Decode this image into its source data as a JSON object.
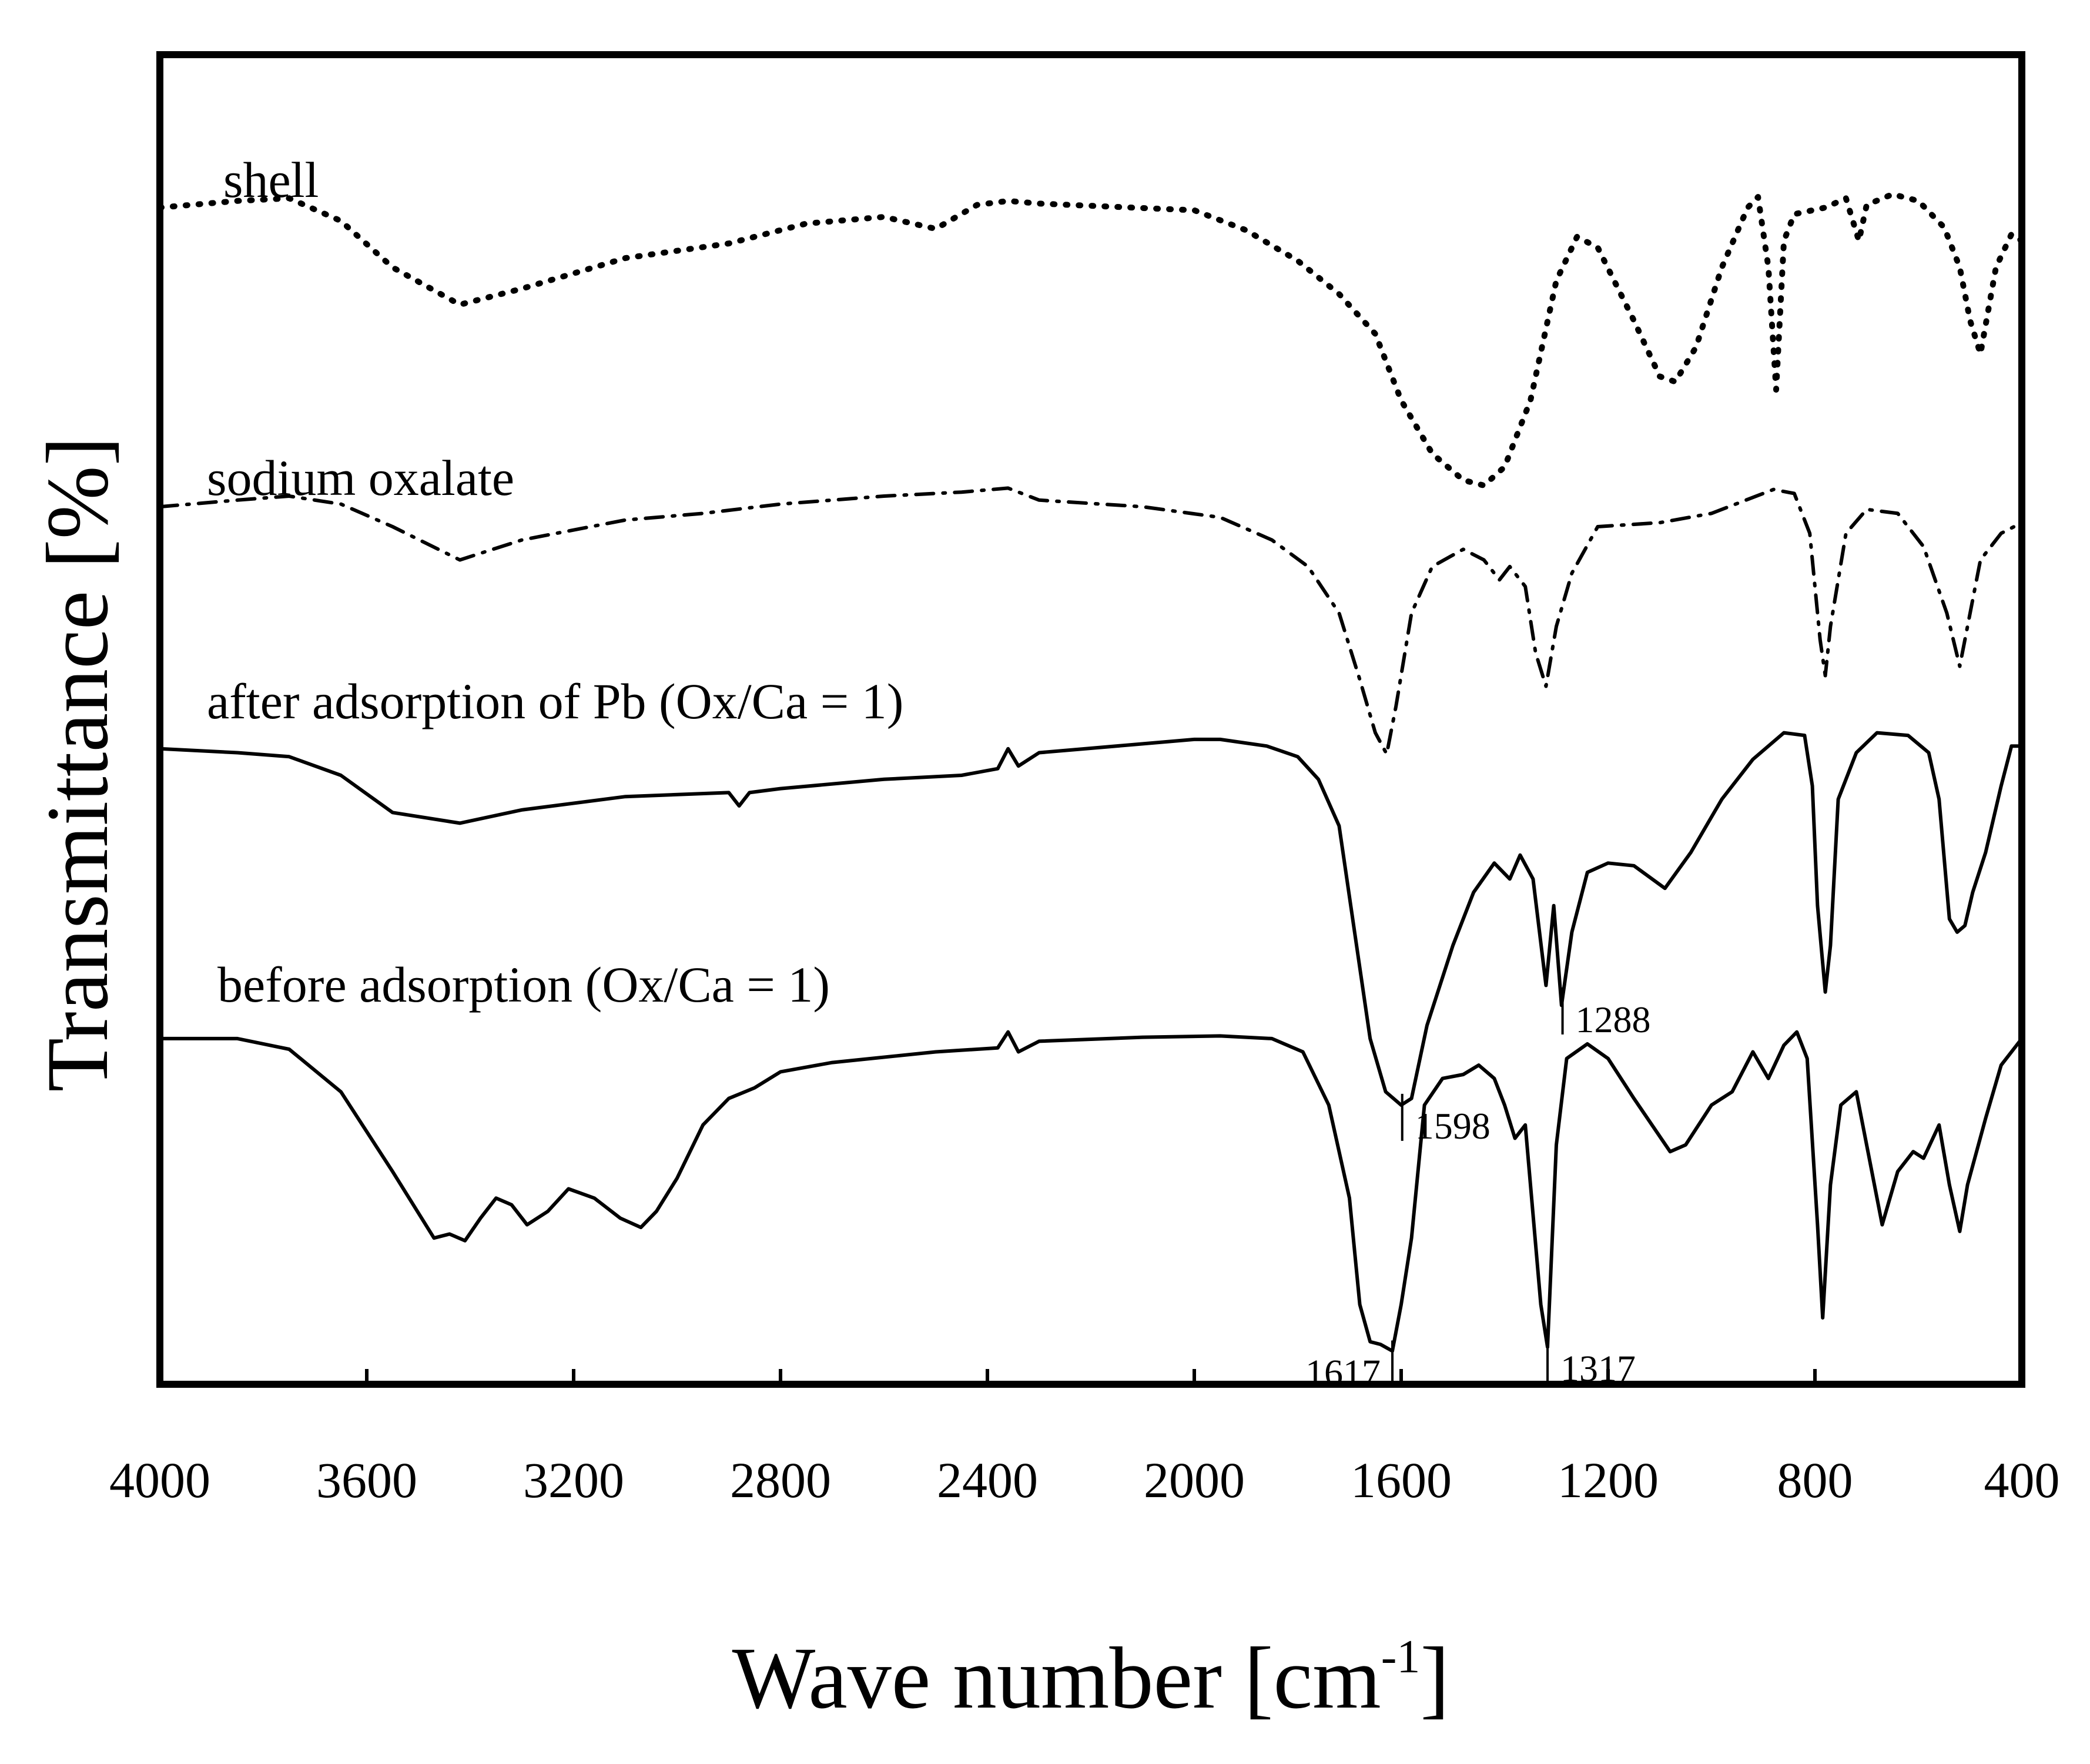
{
  "chart_data": {
    "type": "line",
    "title": "",
    "xlabel": "Wave number [cm",
    "xlabel_sup": "-1",
    "xlabel_end": "]",
    "ylabel": "Transmittance [%]",
    "xlim": [
      4000,
      400
    ],
    "ylim": [
      0,
      100
    ],
    "x_ticks": [
      4000,
      3600,
      3200,
      2800,
      2400,
      2000,
      1600,
      1200,
      800,
      400
    ],
    "x_tick_labels": [
      "4000",
      "3600",
      "3200",
      "2800",
      "2400",
      "2000",
      "1600",
      "1200",
      "800",
      "400"
    ],
    "grid": false,
    "series": [
      {
        "name": "shell",
        "style": "dotted",
        "points": [
          [
            4000,
            88.5
          ],
          [
            3850,
            89
          ],
          [
            3750,
            89.2
          ],
          [
            3650,
            87.5
          ],
          [
            3550,
            84
          ],
          [
            3420,
            81.2
          ],
          [
            3300,
            82.4
          ],
          [
            3100,
            84.7
          ],
          [
            2900,
            85.8
          ],
          [
            2750,
            87.3
          ],
          [
            2600,
            87.8
          ],
          [
            2500,
            86.9
          ],
          [
            2420,
            88.7
          ],
          [
            2360,
            89
          ],
          [
            2300,
            88.8
          ],
          [
            2000,
            88.3
          ],
          [
            1900,
            86.8
          ],
          [
            1800,
            84.5
          ],
          [
            1720,
            82
          ],
          [
            1650,
            79
          ],
          [
            1600,
            74
          ],
          [
            1540,
            70
          ],
          [
            1480,
            68
          ],
          [
            1440,
            67.6
          ],
          [
            1400,
            69
          ],
          [
            1350,
            74
          ],
          [
            1300,
            83
          ],
          [
            1260,
            86.3
          ],
          [
            1220,
            85.5
          ],
          [
            1150,
            80
          ],
          [
            1100,
            75.8
          ],
          [
            1070,
            75.4
          ],
          [
            1030,
            78
          ],
          [
            980,
            84
          ],
          [
            930,
            88.5
          ],
          [
            910,
            89.3
          ],
          [
            890,
            84
          ],
          [
            875,
            74.8
          ],
          [
            860,
            86
          ],
          [
            840,
            88
          ],
          [
            780,
            88.5
          ],
          [
            740,
            89.2
          ],
          [
            715,
            86
          ],
          [
            700,
            88.7
          ],
          [
            650,
            89.5
          ],
          [
            600,
            89
          ],
          [
            550,
            87
          ],
          [
            520,
            84
          ],
          [
            500,
            80
          ],
          [
            480,
            77.5
          ],
          [
            450,
            84
          ],
          [
            420,
            86.5
          ],
          [
            400,
            86
          ]
        ]
      },
      {
        "name": "sodium oxalate",
        "style": "dashdot",
        "points": [
          [
            4000,
            66
          ],
          [
            3850,
            66.5
          ],
          [
            3750,
            66.8
          ],
          [
            3650,
            66.2
          ],
          [
            3550,
            64.5
          ],
          [
            3420,
            62
          ],
          [
            3300,
            63.5
          ],
          [
            3100,
            65
          ],
          [
            2950,
            65.5
          ],
          [
            2800,
            66.2
          ],
          [
            2600,
            66.8
          ],
          [
            2450,
            67.1
          ],
          [
            2360,
            67.4
          ],
          [
            2300,
            66.5
          ],
          [
            2100,
            66
          ],
          [
            1950,
            65.2
          ],
          [
            1850,
            63.5
          ],
          [
            1780,
            61.5
          ],
          [
            1720,
            58
          ],
          [
            1680,
            53
          ],
          [
            1650,
            49
          ],
          [
            1628,
            47.4
          ],
          [
            1610,
            51
          ],
          [
            1580,
            58
          ],
          [
            1540,
            61.5
          ],
          [
            1480,
            62.8
          ],
          [
            1440,
            62
          ],
          [
            1410,
            60.5
          ],
          [
            1390,
            61.5
          ],
          [
            1360,
            60
          ],
          [
            1340,
            55
          ],
          [
            1320,
            52.5
          ],
          [
            1300,
            57
          ],
          [
            1270,
            61
          ],
          [
            1220,
            64.5
          ],
          [
            1100,
            64.8
          ],
          [
            1000,
            65.5
          ],
          [
            880,
            67.3
          ],
          [
            840,
            67
          ],
          [
            810,
            64
          ],
          [
            790,
            56
          ],
          [
            780,
            53.3
          ],
          [
            770,
            57
          ],
          [
            740,
            64
          ],
          [
            700,
            65.8
          ],
          [
            640,
            65.5
          ],
          [
            590,
            63
          ],
          [
            545,
            58
          ],
          [
            520,
            54
          ],
          [
            505,
            57
          ],
          [
            480,
            62
          ],
          [
            440,
            64
          ],
          [
            400,
            64.8
          ]
        ]
      },
      {
        "name": "after adsorption of Pb (Ox/Ca = 1)",
        "style": "solid",
        "points": [
          [
            4000,
            47.8
          ],
          [
            3850,
            47.5
          ],
          [
            3750,
            47.2
          ],
          [
            3650,
            45.8
          ],
          [
            3550,
            43
          ],
          [
            3420,
            42.2
          ],
          [
            3300,
            43.2
          ],
          [
            3100,
            44.2
          ],
          [
            2900,
            44.5
          ],
          [
            2880,
            43.5
          ],
          [
            2860,
            44.5
          ],
          [
            2800,
            44.8
          ],
          [
            2600,
            45.5
          ],
          [
            2450,
            45.8
          ],
          [
            2380,
            46.3
          ],
          [
            2360,
            47.8
          ],
          [
            2340,
            46.5
          ],
          [
            2300,
            47.5
          ],
          [
            2000,
            48.5
          ],
          [
            1950,
            48.5
          ],
          [
            1860,
            48
          ],
          [
            1800,
            47.2
          ],
          [
            1760,
            45.5
          ],
          [
            1720,
            42
          ],
          [
            1690,
            34
          ],
          [
            1660,
            26
          ],
          [
            1630,
            22
          ],
          [
            1600,
            21
          ],
          [
            1580,
            21.5
          ],
          [
            1550,
            27
          ],
          [
            1500,
            33
          ],
          [
            1460,
            37
          ],
          [
            1420,
            39.2
          ],
          [
            1390,
            38
          ],
          [
            1370,
            39.8
          ],
          [
            1345,
            38
          ],
          [
            1320,
            30
          ],
          [
            1305,
            36
          ],
          [
            1290,
            28.5
          ],
          [
            1270,
            34
          ],
          [
            1240,
            38.5
          ],
          [
            1200,
            39.2
          ],
          [
            1150,
            39
          ],
          [
            1090,
            37.3
          ],
          [
            1040,
            40
          ],
          [
            980,
            44
          ],
          [
            920,
            47
          ],
          [
            860,
            49
          ],
          [
            820,
            48.8
          ],
          [
            805,
            45
          ],
          [
            795,
            36
          ],
          [
            780,
            29.5
          ],
          [
            770,
            33
          ],
          [
            755,
            44
          ],
          [
            720,
            47.5
          ],
          [
            680,
            49
          ],
          [
            620,
            48.8
          ],
          [
            580,
            47.5
          ],
          [
            560,
            44
          ],
          [
            540,
            35
          ],
          [
            525,
            34
          ],
          [
            510,
            34.5
          ],
          [
            495,
            37
          ],
          [
            470,
            40
          ],
          [
            440,
            45
          ],
          [
            420,
            48
          ],
          [
            400,
            48
          ]
        ]
      },
      {
        "name": "before adsorption (Ox/Ca = 1)",
        "style": "solid",
        "points": [
          [
            4000,
            26
          ],
          [
            3850,
            26
          ],
          [
            3750,
            25.2
          ],
          [
            3650,
            22
          ],
          [
            3550,
            16
          ],
          [
            3470,
            11
          ],
          [
            3440,
            11.3
          ],
          [
            3410,
            10.8
          ],
          [
            3380,
            12.5
          ],
          [
            3350,
            14
          ],
          [
            3320,
            13.5
          ],
          [
            3290,
            12
          ],
          [
            3250,
            13
          ],
          [
            3210,
            14.7
          ],
          [
            3160,
            14
          ],
          [
            3110,
            12.5
          ],
          [
            3070,
            11.8
          ],
          [
            3040,
            13
          ],
          [
            3000,
            15.5
          ],
          [
            2950,
            19.5
          ],
          [
            2900,
            21.5
          ],
          [
            2850,
            22.3
          ],
          [
            2800,
            23.5
          ],
          [
            2700,
            24.2
          ],
          [
            2500,
            25
          ],
          [
            2380,
            25.3
          ],
          [
            2360,
            26.5
          ],
          [
            2340,
            25
          ],
          [
            2300,
            25.8
          ],
          [
            2100,
            26.1
          ],
          [
            1950,
            26.2
          ],
          [
            1850,
            26
          ],
          [
            1790,
            25
          ],
          [
            1740,
            21
          ],
          [
            1700,
            14
          ],
          [
            1680,
            6
          ],
          [
            1660,
            3.2
          ],
          [
            1640,
            3
          ],
          [
            1617,
            2.5
          ],
          [
            1600,
            6
          ],
          [
            1580,
            11
          ],
          [
            1555,
            21
          ],
          [
            1520,
            23
          ],
          [
            1480,
            23.3
          ],
          [
            1450,
            24
          ],
          [
            1420,
            23
          ],
          [
            1400,
            21
          ],
          [
            1380,
            18.5
          ],
          [
            1360,
            19.5
          ],
          [
            1330,
            6
          ],
          [
            1317,
            2.8
          ],
          [
            1300,
            18
          ],
          [
            1280,
            24.5
          ],
          [
            1240,
            25.6
          ],
          [
            1200,
            24.5
          ],
          [
            1150,
            21.5
          ],
          [
            1080,
            17.5
          ],
          [
            1050,
            18
          ],
          [
            1000,
            21
          ],
          [
            960,
            22
          ],
          [
            920,
            25
          ],
          [
            890,
            23
          ],
          [
            860,
            25.5
          ],
          [
            835,
            26.5
          ],
          [
            815,
            24.5
          ],
          [
            795,
            12
          ],
          [
            785,
            5
          ],
          [
            770,
            15
          ],
          [
            750,
            21
          ],
          [
            720,
            22
          ],
          [
            690,
            16
          ],
          [
            670,
            12
          ],
          [
            640,
            16
          ],
          [
            610,
            17.5
          ],
          [
            590,
            17
          ],
          [
            560,
            19.5
          ],
          [
            540,
            15
          ],
          [
            520,
            11.5
          ],
          [
            505,
            15
          ],
          [
            470,
            20
          ],
          [
            440,
            24
          ],
          [
            400,
            26
          ]
        ]
      }
    ],
    "series_labels": [
      {
        "text": "shell",
        "series": "shell",
        "anchor": "above-left"
      },
      {
        "text": "sodium oxalate",
        "series": "sodium oxalate",
        "anchor": "above-left"
      },
      {
        "text": "after adsorption of Pb (Ox/Ca = 1)",
        "series": "after adsorption of Pb (Ox/Ca = 1)",
        "anchor": "above-left"
      },
      {
        "text": "before adsorption (Ox/Ca = 1)",
        "series": "before adsorption (Ox/Ca = 1)",
        "anchor": "above-left"
      }
    ],
    "annotations": [
      {
        "text": "1598",
        "x": 1598,
        "series": "after adsorption of Pb (Ox/Ca = 1)",
        "side": "right"
      },
      {
        "text": "1288",
        "x": 1288,
        "series": "after adsorption of Pb (Ox/Ca = 1)",
        "side": "right"
      },
      {
        "text": "1617",
        "x": 1617,
        "series": "before adsorption (Ox/Ca = 1)",
        "side": "left"
      },
      {
        "text": "1317",
        "x": 1317,
        "series": "before adsorption (Ox/Ca = 1)",
        "side": "right"
      }
    ]
  }
}
